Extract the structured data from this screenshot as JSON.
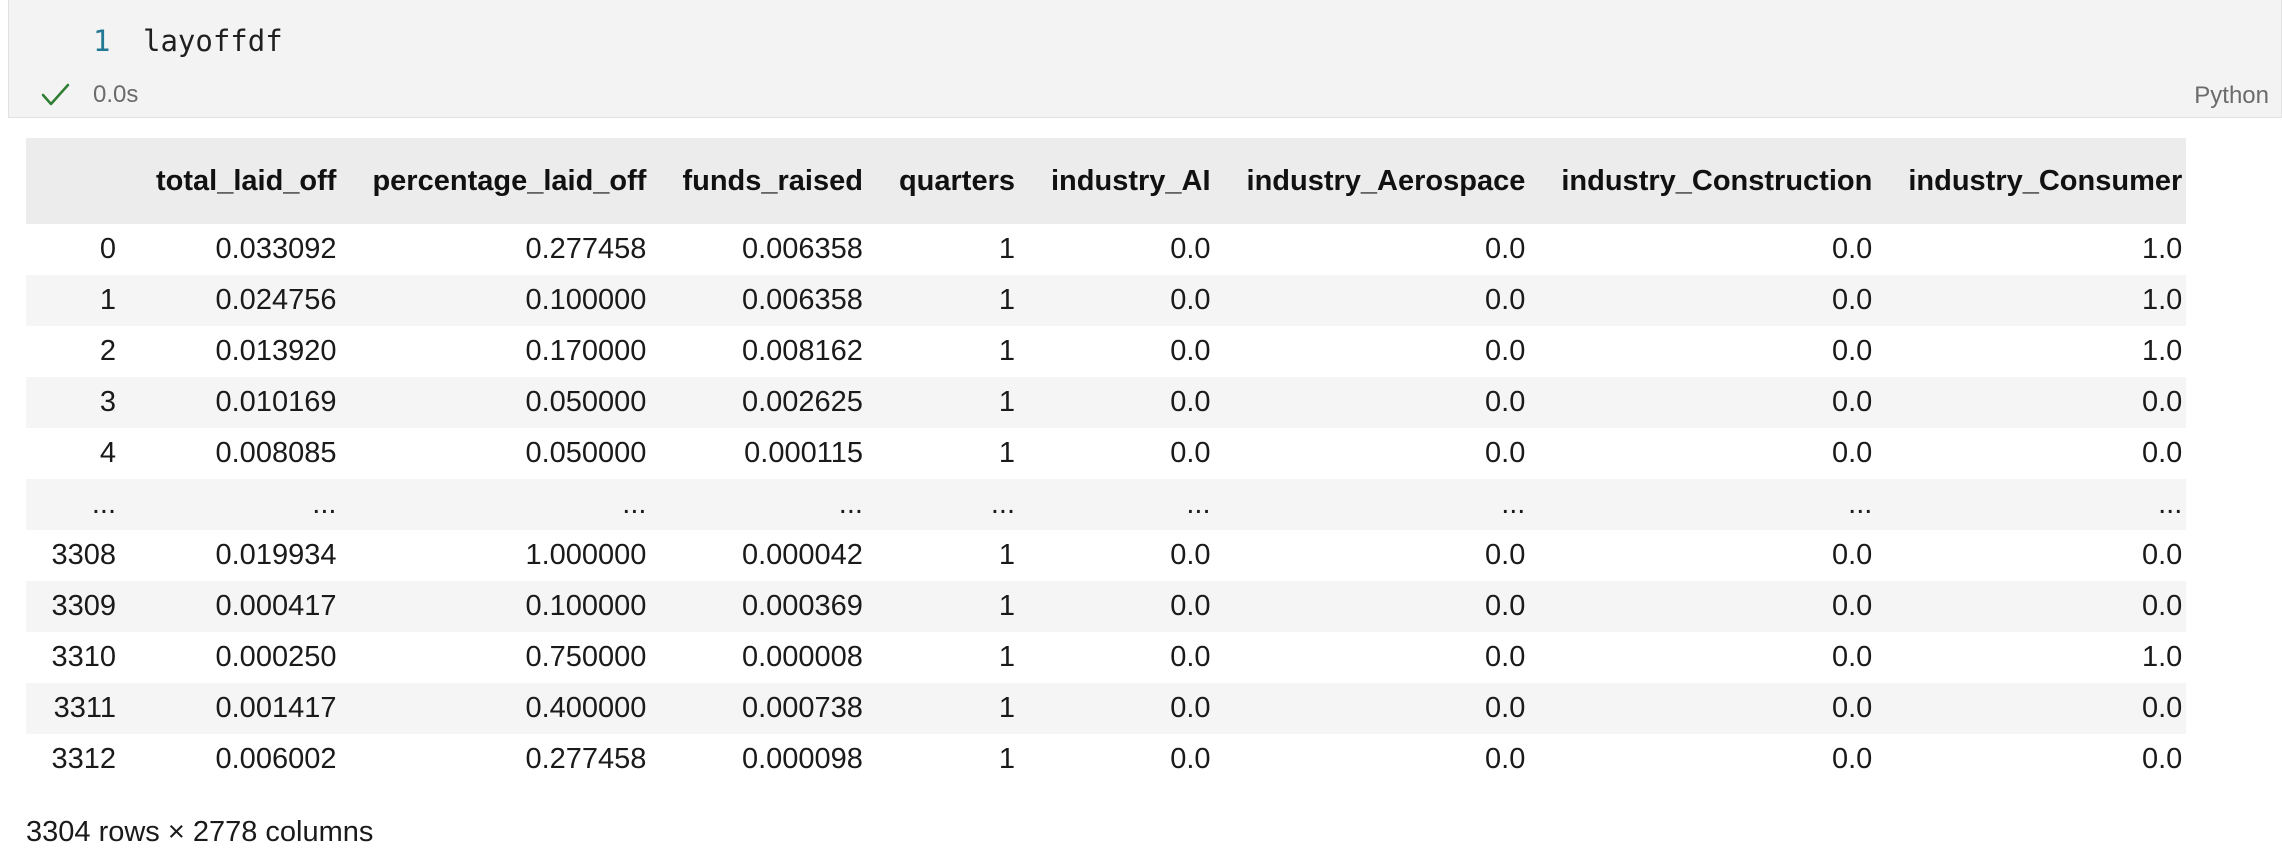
{
  "cell": {
    "line_number": "1",
    "code": "layoffdf",
    "exec_time": "0.0s",
    "language": "Python",
    "status_icon": "checkmark-icon",
    "status_color": "#2e7d32"
  },
  "table": {
    "columns": [
      "",
      "total_laid_off",
      "percentage_laid_off",
      "funds_raised",
      "quarters",
      "industry_AI",
      "industry_Aerospace",
      "industry_Construction",
      "industry_Consumer"
    ],
    "rows": [
      [
        "0",
        "0.033092",
        "0.277458",
        "0.006358",
        "1",
        "0.0",
        "0.0",
        "0.0",
        "1.0"
      ],
      [
        "1",
        "0.024756",
        "0.100000",
        "0.006358",
        "1",
        "0.0",
        "0.0",
        "0.0",
        "1.0"
      ],
      [
        "2",
        "0.013920",
        "0.170000",
        "0.008162",
        "1",
        "0.0",
        "0.0",
        "0.0",
        "1.0"
      ],
      [
        "3",
        "0.010169",
        "0.050000",
        "0.002625",
        "1",
        "0.0",
        "0.0",
        "0.0",
        "0.0"
      ],
      [
        "4",
        "0.008085",
        "0.050000",
        "0.000115",
        "1",
        "0.0",
        "0.0",
        "0.0",
        "0.0"
      ],
      [
        "...",
        "...",
        "...",
        "...",
        "...",
        "...",
        "...",
        "...",
        "..."
      ],
      [
        "3308",
        "0.019934",
        "1.000000",
        "0.000042",
        "1",
        "0.0",
        "0.0",
        "0.0",
        "0.0"
      ],
      [
        "3309",
        "0.000417",
        "0.100000",
        "0.000369",
        "1",
        "0.0",
        "0.0",
        "0.0",
        "0.0"
      ],
      [
        "3310",
        "0.000250",
        "0.750000",
        "0.000008",
        "1",
        "0.0",
        "0.0",
        "0.0",
        "1.0"
      ],
      [
        "3311",
        "0.001417",
        "0.400000",
        "0.000738",
        "1",
        "0.0",
        "0.0",
        "0.0",
        "0.0"
      ],
      [
        "3312",
        "0.006002",
        "0.277458",
        "0.000098",
        "1",
        "0.0",
        "0.0",
        "0.0",
        "0.0"
      ]
    ]
  },
  "shape_text": "3304 rows × 2778 columns"
}
